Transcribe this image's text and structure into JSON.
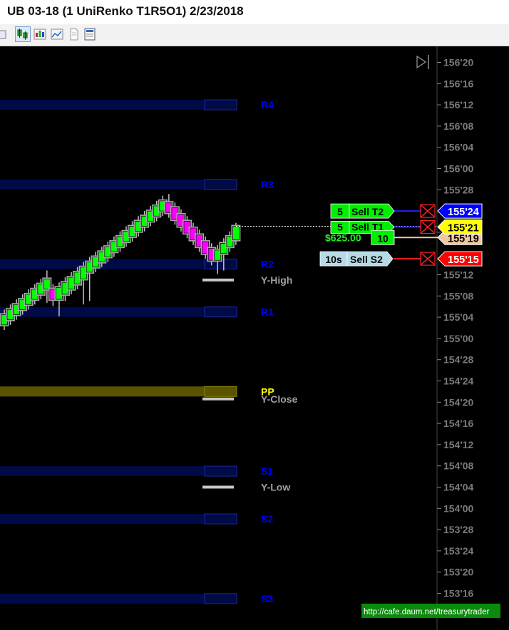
{
  "window": {
    "title": "UB 03-18 (1 UniRenko T1R5O1)  2/23/2018"
  },
  "toolbar": {
    "items": [
      {
        "name": "partial-tool-icon"
      },
      {
        "name": "bar-type-icon",
        "active": true
      },
      {
        "name": "indicators-icon"
      },
      {
        "name": "strategies-icon"
      },
      {
        "name": "data-series-icon"
      },
      {
        "name": "properties-icon"
      }
    ]
  },
  "chart_data": {
    "type": "candlestick",
    "ylim": [
      153.47,
      156.69
    ],
    "y_ticks": [
      {
        "value": 156.625,
        "label": "156'20"
      },
      {
        "value": 156.5,
        "label": "156'16"
      },
      {
        "value": 156.375,
        "label": "156'12"
      },
      {
        "value": 156.25,
        "label": "156'08"
      },
      {
        "value": 156.125,
        "label": "156'04"
      },
      {
        "value": 156.0,
        "label": "156'00"
      },
      {
        "value": 155.875,
        "label": "155'28"
      },
      {
        "value": 155.625,
        "label": "155'20"
      },
      {
        "value": 155.375,
        "label": "155'12"
      },
      {
        "value": 155.25,
        "label": "155'08"
      },
      {
        "value": 155.125,
        "label": "155'04"
      },
      {
        "value": 155.0,
        "label": "155'00"
      },
      {
        "value": 154.875,
        "label": "154'28"
      },
      {
        "value": 154.75,
        "label": "154'24"
      },
      {
        "value": 154.625,
        "label": "154'20"
      },
      {
        "value": 154.5,
        "label": "154'16"
      },
      {
        "value": 154.375,
        "label": "154'12"
      },
      {
        "value": 154.25,
        "label": "154'08"
      },
      {
        "value": 154.125,
        "label": "154'04"
      },
      {
        "value": 154.0,
        "label": "154'00"
      },
      {
        "value": 153.875,
        "label": "153'28"
      },
      {
        "value": 153.75,
        "label": "153'24"
      },
      {
        "value": 153.625,
        "label": "153'20"
      },
      {
        "value": 153.5,
        "label": "153'16"
      }
    ],
    "pivot_levels": [
      {
        "label": "R4",
        "value": 156.375,
        "color": "#0000ff"
      },
      {
        "label": "R3",
        "value": 155.906,
        "color": "#0000ff"
      },
      {
        "label": "R2",
        "value": 155.438,
        "color": "#0000ff"
      },
      {
        "label": "R1",
        "value": 155.156,
        "color": "#0000ff"
      },
      {
        "label": "PP",
        "value": 154.688,
        "color": "#ffff00"
      },
      {
        "label": "S1",
        "value": 154.219,
        "color": "#0000ff"
      },
      {
        "label": "S2",
        "value": 153.938,
        "color": "#0000ff"
      },
      {
        "label": "S3",
        "value": 153.469,
        "color": "#0000ff"
      }
    ],
    "reference_levels": [
      {
        "label": "Y-High",
        "value": 155.344
      },
      {
        "label": "Y-Close",
        "value": 154.644
      },
      {
        "label": "Y-Low",
        "value": 154.125
      }
    ],
    "bars": [
      {
        "o": 155.08,
        "c": 155.14,
        "h": 155.17,
        "l": 155.05,
        "d": "up"
      },
      {
        "o": 155.11,
        "c": 155.17,
        "h": 155.2,
        "l": 155.08,
        "d": "up"
      },
      {
        "o": 155.14,
        "c": 155.2,
        "h": 155.23,
        "l": 155.11,
        "d": "up"
      },
      {
        "o": 155.17,
        "c": 155.23,
        "h": 155.26,
        "l": 155.14,
        "d": "up"
      },
      {
        "o": 155.2,
        "c": 155.26,
        "h": 155.29,
        "l": 155.17,
        "d": "up"
      },
      {
        "o": 155.23,
        "c": 155.29,
        "h": 155.32,
        "l": 155.2,
        "d": "up"
      },
      {
        "o": 155.26,
        "c": 155.32,
        "h": 155.35,
        "l": 155.23,
        "d": "up"
      },
      {
        "o": 155.29,
        "c": 155.35,
        "h": 155.4,
        "l": 155.21,
        "d": "up"
      },
      {
        "o": 155.29,
        "c": 155.23,
        "h": 155.32,
        "l": 155.19,
        "d": "down"
      },
      {
        "o": 155.23,
        "c": 155.3,
        "h": 155.33,
        "l": 155.13,
        "d": "up"
      },
      {
        "o": 155.26,
        "c": 155.33,
        "h": 155.36,
        "l": 155.22,
        "d": "up"
      },
      {
        "o": 155.29,
        "c": 155.36,
        "h": 155.39,
        "l": 155.26,
        "d": "up"
      },
      {
        "o": 155.32,
        "c": 155.39,
        "h": 155.42,
        "l": 155.29,
        "d": "up"
      },
      {
        "o": 155.35,
        "c": 155.42,
        "h": 155.45,
        "l": 155.2,
        "d": "up"
      },
      {
        "o": 155.39,
        "c": 155.45,
        "h": 155.48,
        "l": 155.22,
        "d": "up"
      },
      {
        "o": 155.42,
        "c": 155.48,
        "h": 155.51,
        "l": 155.39,
        "d": "up"
      },
      {
        "o": 155.45,
        "c": 155.51,
        "h": 155.54,
        "l": 155.42,
        "d": "up"
      },
      {
        "o": 155.48,
        "c": 155.54,
        "h": 155.57,
        "l": 155.45,
        "d": "up"
      },
      {
        "o": 155.51,
        "c": 155.57,
        "h": 155.6,
        "l": 155.48,
        "d": "up"
      },
      {
        "o": 155.54,
        "c": 155.6,
        "h": 155.63,
        "l": 155.51,
        "d": "up"
      },
      {
        "o": 155.57,
        "c": 155.63,
        "h": 155.66,
        "l": 155.54,
        "d": "up"
      },
      {
        "o": 155.6,
        "c": 155.66,
        "h": 155.69,
        "l": 155.57,
        "d": "up"
      },
      {
        "o": 155.63,
        "c": 155.69,
        "h": 155.72,
        "l": 155.6,
        "d": "up"
      },
      {
        "o": 155.66,
        "c": 155.72,
        "h": 155.75,
        "l": 155.63,
        "d": "up"
      },
      {
        "o": 155.69,
        "c": 155.75,
        "h": 155.78,
        "l": 155.66,
        "d": "up"
      },
      {
        "o": 155.72,
        "c": 155.78,
        "h": 155.81,
        "l": 155.69,
        "d": "up"
      },
      {
        "o": 155.75,
        "c": 155.81,
        "h": 155.84,
        "l": 155.72,
        "d": "up"
      },
      {
        "o": 155.8,
        "c": 155.74,
        "h": 155.85,
        "l": 155.71,
        "d": "down"
      },
      {
        "o": 155.77,
        "c": 155.7,
        "h": 155.8,
        "l": 155.67,
        "d": "down"
      },
      {
        "o": 155.73,
        "c": 155.66,
        "h": 155.76,
        "l": 155.63,
        "d": "down"
      },
      {
        "o": 155.69,
        "c": 155.62,
        "h": 155.72,
        "l": 155.59,
        "d": "down"
      },
      {
        "o": 155.65,
        "c": 155.58,
        "h": 155.68,
        "l": 155.55,
        "d": "down"
      },
      {
        "o": 155.61,
        "c": 155.54,
        "h": 155.64,
        "l": 155.51,
        "d": "down"
      },
      {
        "o": 155.57,
        "c": 155.5,
        "h": 155.6,
        "l": 155.47,
        "d": "down"
      },
      {
        "o": 155.53,
        "c": 155.46,
        "h": 155.56,
        "l": 155.43,
        "d": "down"
      },
      {
        "o": 155.46,
        "c": 155.52,
        "h": 155.55,
        "l": 155.38,
        "d": "up"
      },
      {
        "o": 155.5,
        "c": 155.56,
        "h": 155.59,
        "l": 155.4,
        "d": "up"
      },
      {
        "o": 155.54,
        "c": 155.6,
        "h": 155.63,
        "l": 155.51,
        "d": "up"
      },
      {
        "o": 155.58,
        "c": 155.66,
        "h": 155.68,
        "l": 155.55,
        "d": "up"
      }
    ],
    "current_price_line": 155.66
  },
  "orders": {
    "target2": {
      "qty": "5",
      "label": "Sell T2",
      "price": "155'24",
      "value": 155.75
    },
    "target1": {
      "qty": "5",
      "label": "Sell T1",
      "price": "155'21",
      "value": 155.656
    },
    "position": {
      "pnl": "$625.00",
      "qty": "10",
      "price": "155'19",
      "value": 155.594
    },
    "stop": {
      "qty": "10s",
      "label": "Sell S2",
      "price": "155'15",
      "value": 155.469
    }
  },
  "watermark": {
    "text": "http://cafe.daum.net/treasurytrader"
  },
  "colors": {
    "background": "#000000",
    "pivot_band": "#000a46",
    "pp_band": "#5a5400",
    "up_bar": "#00ff00",
    "down_bar": "#ff00ff",
    "bar_outline": "#a8a8a8",
    "target_label": "#00ee00",
    "target2_price": "#0000ff",
    "target1_price": "#ffff00",
    "position_price": "#f0c8a0",
    "stop_price": "#ff0000",
    "stop_label": "#b6dbe6"
  }
}
